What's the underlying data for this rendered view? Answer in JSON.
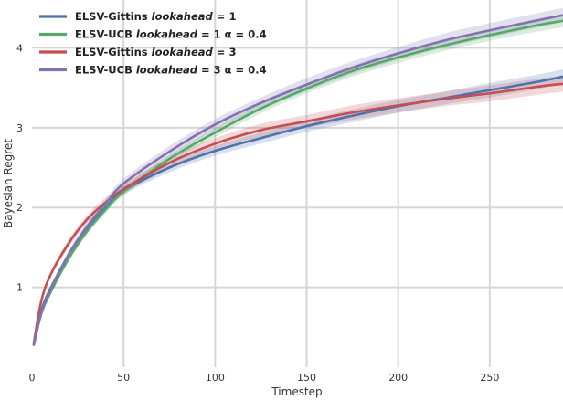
{
  "chart_data": {
    "type": "line",
    "xlabel": "Timestep",
    "ylabel": "Bayesian Regret",
    "xlim": [
      0,
      290
    ],
    "ylim": [
      0,
      4.6
    ],
    "x_ticks": [
      0,
      50,
      100,
      150,
      200,
      250
    ],
    "y_ticks": [
      1,
      2,
      3,
      4
    ],
    "x": [
      1,
      5,
      10,
      20,
      30,
      40,
      50,
      75,
      100,
      125,
      150,
      175,
      200,
      225,
      250,
      275,
      290
    ],
    "grid": true,
    "legend_position": "top-left",
    "shaded_band": true,
    "series": [
      {
        "legend_prefix": "ELSV-Gittins ",
        "legend_italic": "lookahead",
        "legend_suffix": " = 1",
        "color": "#4c72b0",
        "values": [
          0.28,
          0.7,
          0.98,
          1.4,
          1.72,
          1.99,
          2.21,
          2.5,
          2.71,
          2.87,
          3.02,
          3.15,
          3.27,
          3.37,
          3.47,
          3.57,
          3.64
        ],
        "band": [
          0.02,
          0.03,
          0.03,
          0.04,
          0.04,
          0.05,
          0.05,
          0.06,
          0.06,
          0.07,
          0.07,
          0.08,
          0.08,
          0.08,
          0.09,
          0.09,
          0.09
        ]
      },
      {
        "legend_prefix": "ELSV-UCB ",
        "legend_italic": "lookahead",
        "legend_suffix": " = 1 α = 0.4",
        "color": "#55a868",
        "values": [
          0.28,
          0.66,
          0.93,
          1.36,
          1.7,
          1.97,
          2.2,
          2.61,
          2.94,
          3.24,
          3.49,
          3.71,
          3.88,
          4.03,
          4.16,
          4.28,
          4.34
        ],
        "band": [
          0.02,
          0.03,
          0.03,
          0.04,
          0.04,
          0.05,
          0.05,
          0.05,
          0.06,
          0.06,
          0.06,
          0.07,
          0.07,
          0.07,
          0.07,
          0.08,
          0.08
        ]
      },
      {
        "legend_prefix": "ELSV-Gittins ",
        "legend_italic": "lookahead",
        "legend_suffix": " = 3",
        "color": "#c44e52",
        "values": [
          0.3,
          0.82,
          1.15,
          1.55,
          1.85,
          2.06,
          2.23,
          2.56,
          2.8,
          2.97,
          3.08,
          3.19,
          3.28,
          3.36,
          3.43,
          3.51,
          3.55
        ],
        "band": [
          0.02,
          0.03,
          0.04,
          0.05,
          0.05,
          0.06,
          0.06,
          0.07,
          0.07,
          0.08,
          0.08,
          0.09,
          0.09,
          0.09,
          0.1,
          0.1,
          0.1
        ]
      },
      {
        "legend_prefix": "ELSV-UCB ",
        "legend_italic": "lookahead",
        "legend_suffix": " = 3 α = 0.4",
        "color": "#8172b2",
        "values": [
          0.28,
          0.68,
          0.96,
          1.41,
          1.76,
          2.04,
          2.3,
          2.7,
          3.04,
          3.31,
          3.54,
          3.75,
          3.93,
          4.09,
          4.22,
          4.34,
          4.41
        ],
        "band": [
          0.02,
          0.03,
          0.04,
          0.05,
          0.05,
          0.06,
          0.06,
          0.07,
          0.07,
          0.07,
          0.08,
          0.08,
          0.08,
          0.09,
          0.09,
          0.09,
          0.09
        ]
      }
    ]
  }
}
